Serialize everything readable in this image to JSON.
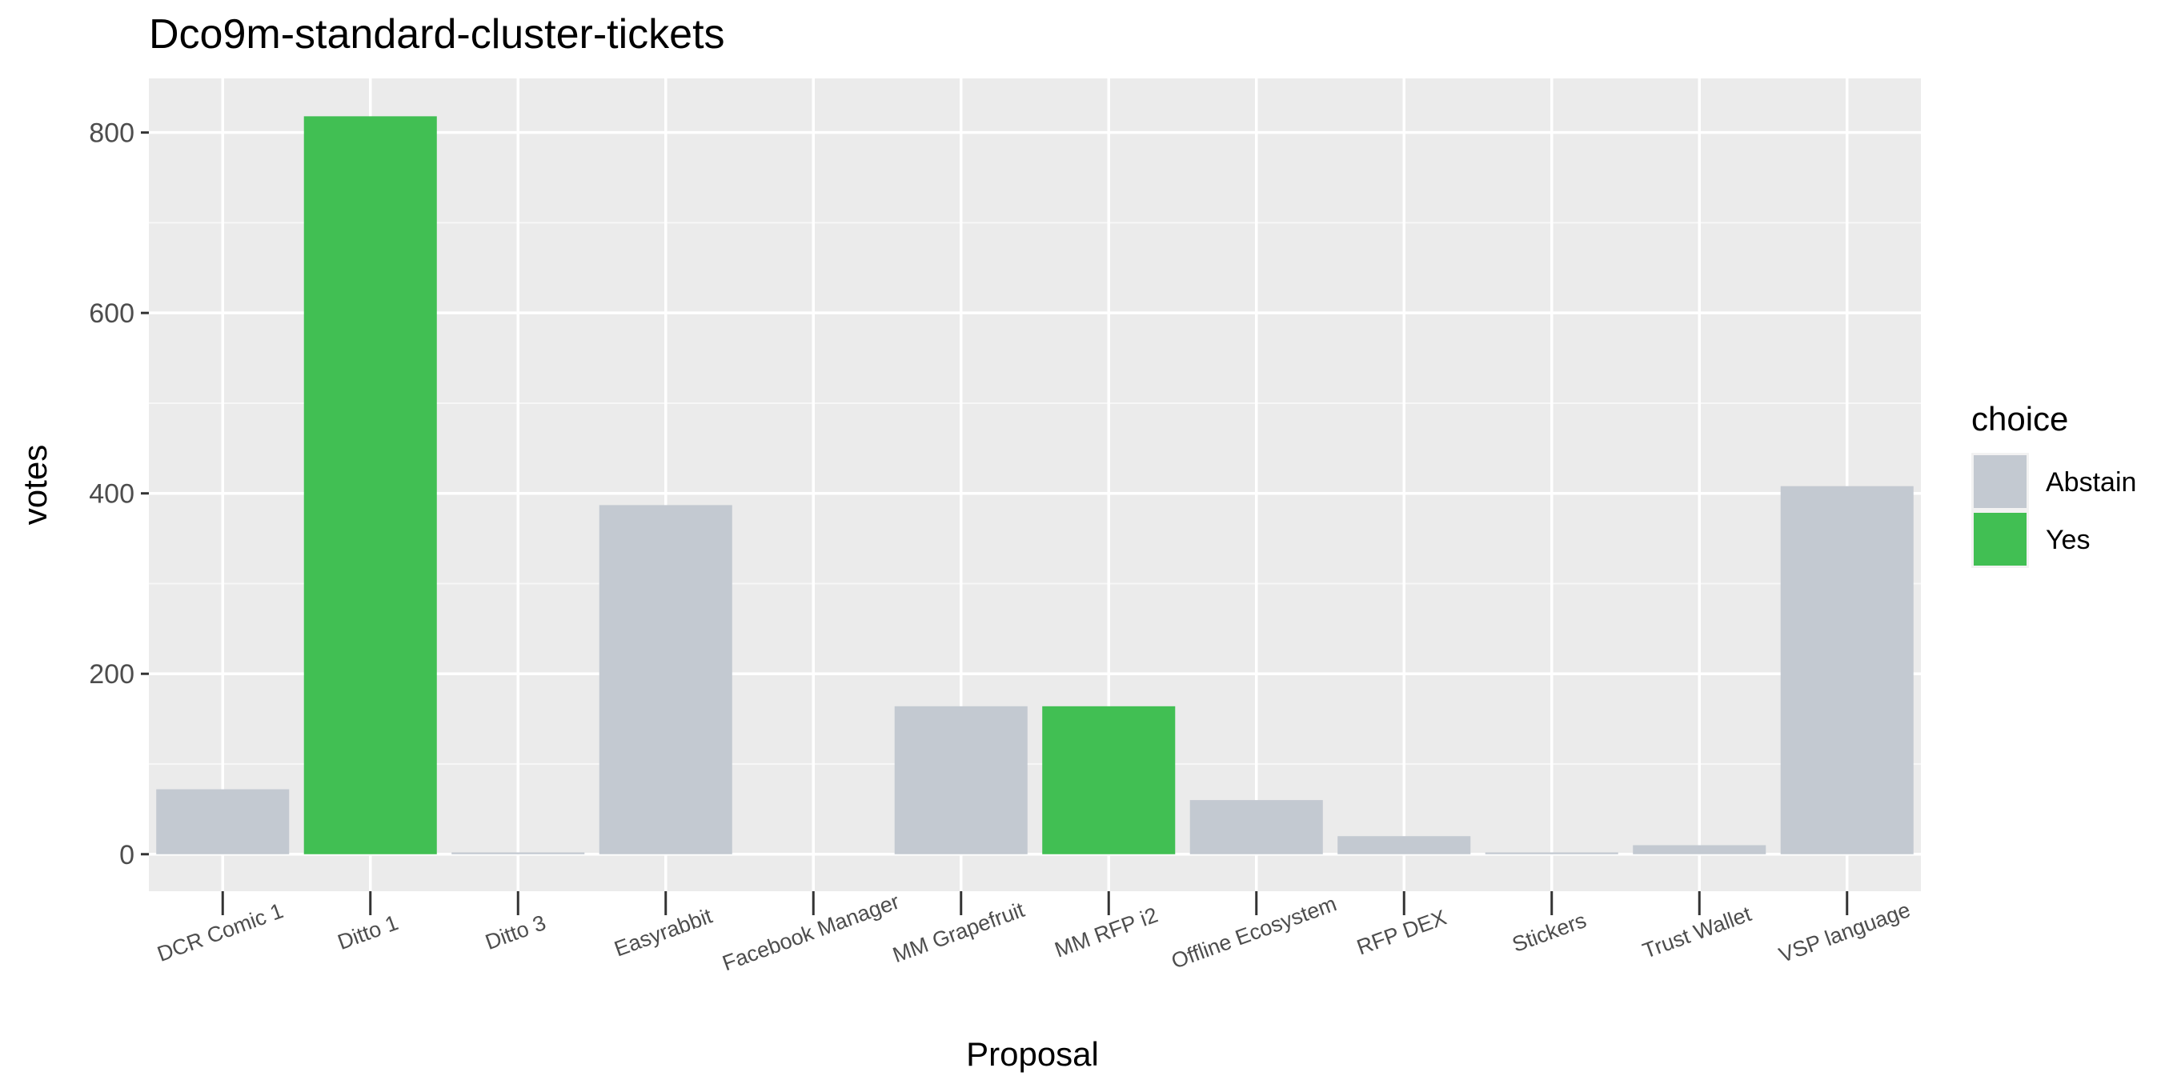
{
  "chart_data": {
    "type": "bar",
    "title": "Dco9m-standard-cluster-tickets",
    "xlabel": "Proposal",
    "ylabel": "votes",
    "categories": [
      "DCR Comic 1",
      "Ditto 1",
      "Ditto 3",
      "Easyrabbit",
      "Facebook Manager",
      "MM Grapefruit",
      "MM RFP i2",
      "Offline Ecosystem",
      "RFP DEX",
      "Stickers",
      "Trust Wallet",
      "VSP language"
    ],
    "bars": [
      {
        "category": "DCR Comic 1",
        "choice": "Abstain",
        "value": 72
      },
      {
        "category": "Ditto 1",
        "choice": "Yes",
        "value": 818
      },
      {
        "category": "Ditto 3",
        "choice": "Abstain",
        "value": 2
      },
      {
        "category": "Easyrabbit",
        "choice": "Abstain",
        "value": 387
      },
      {
        "category": "Facebook Manager",
        "choice": "Abstain",
        "value": 0
      },
      {
        "category": "MM Grapefruit",
        "choice": "Abstain",
        "value": 164
      },
      {
        "category": "MM RFP i2",
        "choice": "Yes",
        "value": 164
      },
      {
        "category": "Offline Ecosystem",
        "choice": "Abstain",
        "value": 60
      },
      {
        "category": "RFP DEX",
        "choice": "Abstain",
        "value": 20
      },
      {
        "category": "Stickers",
        "choice": "Abstain",
        "value": 2
      },
      {
        "category": "Trust Wallet",
        "choice": "Abstain",
        "value": 10
      },
      {
        "category": "VSP language",
        "choice": "Abstain",
        "value": 408
      }
    ],
    "ylim": [
      -41,
      860
    ],
    "yticks": [
      0,
      200,
      400,
      600,
      800
    ],
    "grid": true,
    "legend": {
      "title": "choice",
      "position": "right",
      "items": [
        {
          "label": "Abstain",
          "color": "#C3C9D1"
        },
        {
          "label": "Yes",
          "color": "#41BF53"
        }
      ]
    },
    "colors": {
      "panel": "#EBEBEB",
      "grid_major": "#FFFFFF",
      "Abstain": "#C3C9D1",
      "Yes": "#41BF53"
    }
  }
}
